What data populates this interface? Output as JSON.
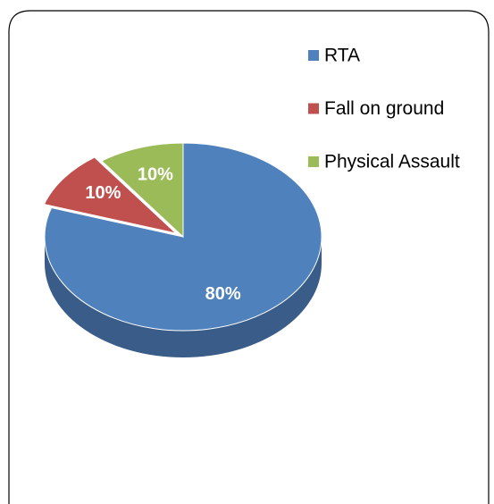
{
  "chart_data": {
    "type": "pie",
    "categories": [
      "RTA",
      "Fall on ground",
      "Physical Assault"
    ],
    "values": [
      80,
      10,
      10
    ],
    "value_labels": [
      "80%",
      "10%",
      "10%"
    ],
    "colors": [
      "#4f81bd",
      "#c0504d",
      "#9bbb59"
    ],
    "legend": "right"
  }
}
